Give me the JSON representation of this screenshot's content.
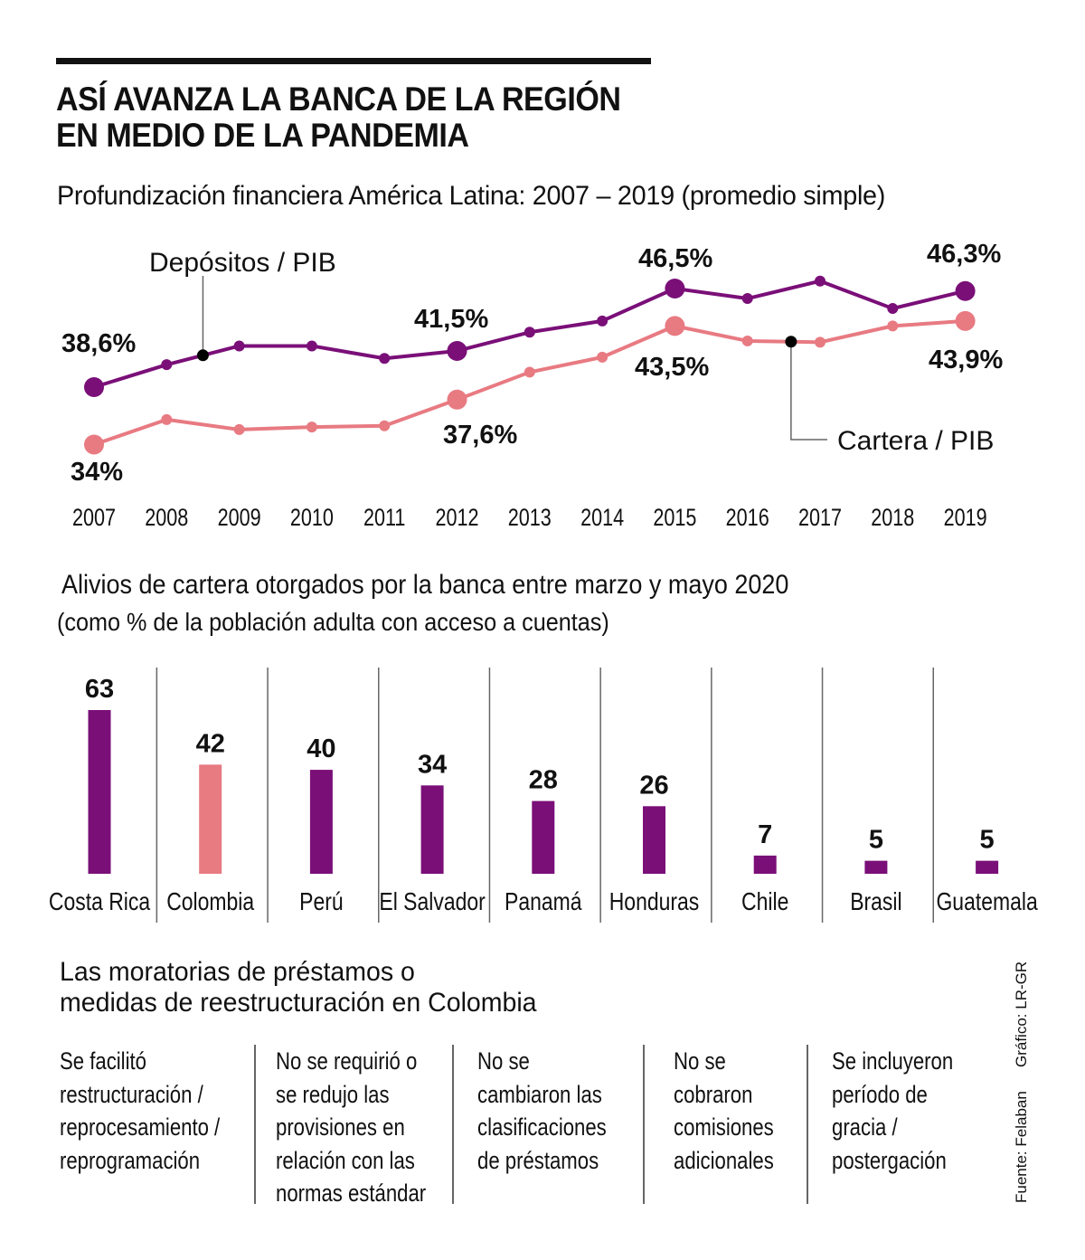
{
  "header": {
    "title_line1": "ASÍ AVANZA LA BANCA DE LA REGIÓN",
    "title_line2": "EN MEDIO DE LA PANDEMIA"
  },
  "colors": {
    "purple": "#7a0f78",
    "pink": "#e87a82",
    "black": "#111111",
    "divider": "#666666"
  },
  "chart_data": [
    {
      "type": "line",
      "title": "Profundización financiera América Latina: 2007 – 2019 (promedio simple)",
      "xlabel": "",
      "ylabel": "",
      "grid": false,
      "ylim": [
        33,
        48
      ],
      "x": [
        "2007",
        "2008",
        "2009",
        "2010",
        "2011",
        "2012",
        "2013",
        "2014",
        "2015",
        "2016",
        "2017",
        "2018",
        "2019"
      ],
      "series": [
        {
          "name": "Depósitos / PIB",
          "color": "#7a0f78",
          "values": [
            38.6,
            40.4,
            41.9,
            41.9,
            40.9,
            41.5,
            43.0,
            43.9,
            46.5,
            45.7,
            47.1,
            44.9,
            46.3
          ],
          "labeled_points": [
            {
              "index": 0,
              "label": "38,6%",
              "position": "above"
            },
            {
              "index": 5,
              "label": "41,5%",
              "position": "above"
            },
            {
              "index": 8,
              "label": "46,5%",
              "position": "above"
            },
            {
              "index": 12,
              "label": "46,3%",
              "position": "above"
            }
          ]
        },
        {
          "name": "Cartera / PIB",
          "color": "#e87a82",
          "values": [
            34.0,
            36.0,
            35.2,
            35.4,
            35.5,
            37.6,
            39.8,
            41.0,
            43.5,
            42.3,
            42.2,
            43.5,
            43.9
          ],
          "labeled_points": [
            {
              "index": 0,
              "label": "34%",
              "position": "below"
            },
            {
              "index": 5,
              "label": "37,6%",
              "position": "below"
            },
            {
              "index": 8,
              "label": "43,5%",
              "position": "below"
            },
            {
              "index": 12,
              "label": "43,9%",
              "position": "below"
            }
          ]
        }
      ],
      "annotations": [
        {
          "text": "Depósitos / PIB",
          "series": 0,
          "at_x": 2008.5
        },
        {
          "text": "Cartera / PIB",
          "series": 1,
          "at_x": 2016.6
        }
      ]
    },
    {
      "type": "bar",
      "title": "Alivios de cartera otorgados por la banca entre marzo y mayo 2020",
      "subtitle": "(como % de la población adulta con acceso a cuentas)",
      "xlabel": "",
      "ylabel": "",
      "ylim": [
        0,
        63
      ],
      "categories": [
        "Costa Rica",
        "Colombia",
        "Perú",
        "El Salvador",
        "Panamá",
        "Honduras",
        "Chile",
        "Brasil",
        "Guatemala"
      ],
      "values": [
        63,
        42,
        40,
        34,
        28,
        26,
        7,
        5,
        5
      ],
      "highlight": [
        "Colombia"
      ],
      "bar_colors": [
        "#7a0f78",
        "#e87a82",
        "#7a0f78",
        "#7a0f78",
        "#7a0f78",
        "#7a0f78",
        "#7a0f78",
        "#7a0f78",
        "#7a0f78"
      ]
    }
  ],
  "measures_section": {
    "title_line1": "Las moratorias de préstamos o",
    "title_line2": "medidas de reestructuración en Colombia",
    "items": [
      "Se facilitó\nrestructuración /\nreprocesamiento /\nreprogramación",
      "No se requirió o\nse redujo las\nprovisiones en\nrelación con las\nnormas estándar",
      "No se\ncambiaron las\nclasificaciones\nde préstamos",
      "No se\ncobraron\ncomisiones\nadicionales",
      "Se incluyeron\nperíodo de\ngracia /\npostergación"
    ]
  },
  "credits": {
    "graphic": "Gráfico: LR-GR",
    "source": "Fuente: Felaban"
  }
}
